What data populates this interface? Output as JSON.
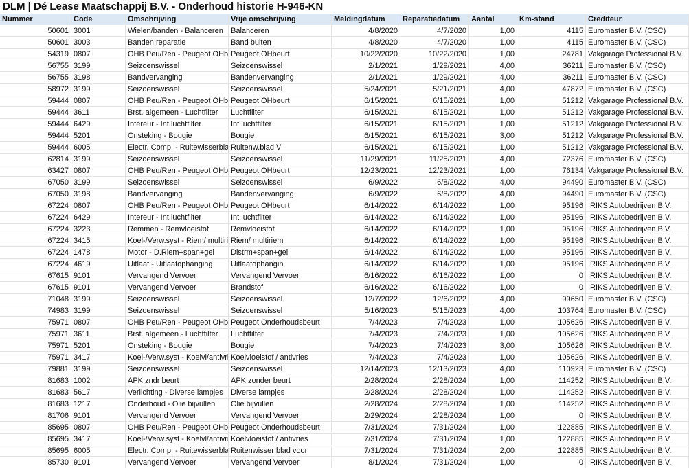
{
  "title": "DLM | Dé Lease Maatschappij B.V. - Onderhoud historie H-946-KN",
  "table": {
    "columns": [
      "Nummer",
      "Code",
      "Omschrijving",
      "Vrije omschrijving",
      "Meldingdatum",
      "Reparatiedatum",
      "Aantal",
      "Km-stand",
      "Crediteur"
    ],
    "rows": [
      [
        "50601",
        "3001",
        "Wielen/banden - Balanceren",
        "Balanceren",
        "4/8/2020",
        "4/7/2020",
        "1,00",
        "4115",
        "Euromaster B.V. (CSC)"
      ],
      [
        "50601",
        "3003",
        "Banden reparatie",
        "Band buiten",
        "4/8/2020",
        "4/7/2020",
        "1,00",
        "4115",
        "Euromaster B.V. (CSC)"
      ],
      [
        "54319",
        "0807",
        "OHB Peu/Ren - Peugeot OHbe",
        "Peugeot OHbeurt",
        "10/22/2020",
        "10/22/2020",
        "1,00",
        "24781",
        "Vakgarage Professional B.V."
      ],
      [
        "56755",
        "3199",
        "Seizoenswissel",
        "Seizoenswissel",
        "2/1/2021",
        "1/29/2021",
        "4,00",
        "36211",
        "Euromaster B.V. (CSC)"
      ],
      [
        "56755",
        "3198",
        "Bandvervanging",
        "Bandenvervanging",
        "2/1/2021",
        "1/29/2021",
        "4,00",
        "36211",
        "Euromaster B.V. (CSC)"
      ],
      [
        "58972",
        "3199",
        "Seizoenswissel",
        "Seizoenswissel",
        "5/24/2021",
        "5/21/2021",
        "4,00",
        "47872",
        "Euromaster B.V. (CSC)"
      ],
      [
        "59444",
        "0807",
        "OHB Peu/Ren - Peugeot OHbe",
        "Peugeot OHbeurt",
        "6/15/2021",
        "6/15/2021",
        "1,00",
        "51212",
        "Vakgarage Professional B.V."
      ],
      [
        "59444",
        "3611",
        "Brst. algemeen - Luchtfilter",
        "Luchtfilter",
        "6/15/2021",
        "6/15/2021",
        "1,00",
        "51212",
        "Vakgarage Professional B.V."
      ],
      [
        "59444",
        "6429",
        "Intereur - Int.luchtfilter",
        "Int luchtfilter",
        "6/15/2021",
        "6/15/2021",
        "1,00",
        "51212",
        "Vakgarage Professional B.V."
      ],
      [
        "59444",
        "5201",
        "Onsteking - Bougie",
        "Bougie",
        "6/15/2021",
        "6/15/2021",
        "3,00",
        "51212",
        "Vakgarage Professional B.V."
      ],
      [
        "59444",
        "6005",
        "Electr. Comp. - Ruitewisserbla",
        "Ruitenw.blad V",
        "6/15/2021",
        "6/15/2021",
        "1,00",
        "51212",
        "Vakgarage Professional B.V."
      ],
      [
        "62814",
        "3199",
        "Seizoenswissel",
        "Seizoenswissel",
        "11/29/2021",
        "11/25/2021",
        "4,00",
        "72376",
        "Euromaster B.V. (CSC)"
      ],
      [
        "63427",
        "0807",
        "OHB Peu/Ren - Peugeot OHbe",
        "Peugeot OHbeurt",
        "12/23/2021",
        "12/23/2021",
        "1,00",
        "76134",
        "Vakgarage Professional B.V."
      ],
      [
        "67050",
        "3199",
        "Seizoenswissel",
        "Seizoenswissel",
        "6/9/2022",
        "6/8/2022",
        "4,00",
        "94490",
        "Euromaster B.V. (CSC)"
      ],
      [
        "67050",
        "3198",
        "Bandvervanging",
        "Bandenvervanging",
        "6/9/2022",
        "6/8/2022",
        "4,00",
        "94490",
        "Euromaster B.V. (CSC)"
      ],
      [
        "67224",
        "0807",
        "OHB Peu/Ren - Peugeot OHbe",
        "Peugeot OHbeurt",
        "6/14/2022",
        "6/14/2022",
        "1,00",
        "95196",
        "IRIKS Autobedrijven B.V."
      ],
      [
        "67224",
        "6429",
        "Intereur - Int.luchtfilter",
        "Int luchtfilter",
        "6/14/2022",
        "6/14/2022",
        "1,00",
        "95196",
        "IRIKS Autobedrijven B.V."
      ],
      [
        "67224",
        "3223",
        "Remmen - Remvloeistof",
        "Remvloeistof",
        "6/14/2022",
        "6/14/2022",
        "1,00",
        "95196",
        "IRIKS Autobedrijven B.V."
      ],
      [
        "67224",
        "3415",
        "Koel-/Verw.syst - Riem/ multiri",
        "Riem/ multiriem",
        "6/14/2022",
        "6/14/2022",
        "1,00",
        "95196",
        "IRIKS Autobedrijven B.V."
      ],
      [
        "67224",
        "1478",
        "Motor - D.Riem+span+gel",
        "Distrm+span+gel",
        "6/14/2022",
        "6/14/2022",
        "1,00",
        "95196",
        "IRIKS Autobedrijven B.V."
      ],
      [
        "67224",
        "4619",
        "Uitlaat - Uitlaatophanging",
        "Uitlaatophangin",
        "6/14/2022",
        "6/14/2022",
        "1,00",
        "95196",
        "IRIKS Autobedrijven B.V."
      ],
      [
        "67615",
        "9101",
        "Vervangend Vervoer",
        "Vervangend Vervoer",
        "6/16/2022",
        "6/16/2022",
        "1,00",
        "0",
        "IRIKS Autobedrijven B.V."
      ],
      [
        "67615",
        "9101",
        "Vervangend Vervoer",
        "Brandstof",
        "6/16/2022",
        "6/16/2022",
        "1,00",
        "0",
        "IRIKS Autobedrijven B.V."
      ],
      [
        "71048",
        "3199",
        "Seizoenswissel",
        "Seizoenswissel",
        "12/7/2022",
        "12/6/2022",
        "4,00",
        "99650",
        "Euromaster B.V. (CSC)"
      ],
      [
        "74983",
        "3199",
        "Seizoenswissel",
        "Seizoenswissel",
        "5/16/2023",
        "5/15/2023",
        "4,00",
        "103764",
        "Euromaster B.V. (CSC)"
      ],
      [
        "75971",
        "0807",
        "OHB Peu/Ren - Peugeot OHbe",
        "Peugeot Onderhoudsbeurt",
        "7/4/2023",
        "7/4/2023",
        "1,00",
        "105626",
        "IRIKS Autobedrijven B.V."
      ],
      [
        "75971",
        "3611",
        "Brst. algemeen - Luchtfilter",
        "Luchtfilter",
        "7/4/2023",
        "7/4/2023",
        "1,00",
        "105626",
        "IRIKS Autobedrijven B.V."
      ],
      [
        "75971",
        "5201",
        "Onsteking - Bougie",
        "Bougie",
        "7/4/2023",
        "7/4/2023",
        "3,00",
        "105626",
        "IRIKS Autobedrijven B.V."
      ],
      [
        "75971",
        "3417",
        "Koel-/Verw.syst - Koelvl/antivri",
        "Koelvloeistof / antivries",
        "7/4/2023",
        "7/4/2023",
        "1,00",
        "105626",
        "IRIKS Autobedrijven B.V."
      ],
      [
        "79881",
        "3199",
        "Seizoenswissel",
        "Seizoenswissel",
        "12/14/2023",
        "12/13/2023",
        "4,00",
        "110923",
        "Euromaster B.V. (CSC)"
      ],
      [
        "81683",
        "1002",
        "APK zndr beurt",
        "APK zonder beurt",
        "2/28/2024",
        "2/28/2024",
        "1,00",
        "114252",
        "IRIKS Autobedrijven B.V."
      ],
      [
        "81683",
        "5617",
        "Verlichting - Diverse lampjes",
        "Diverse lampjes",
        "2/28/2024",
        "2/28/2024",
        "1,00",
        "114252",
        "IRIKS Autobedrijven B.V."
      ],
      [
        "81683",
        "1217",
        "Onderhoud - Olie bijvullen",
        "Olie bijvullen",
        "2/28/2024",
        "2/28/2024",
        "1,00",
        "114252",
        "IRIKS Autobedrijven B.V."
      ],
      [
        "81706",
        "9101",
        "Vervangend Vervoer",
        "Vervangend Vervoer",
        "2/29/2024",
        "2/28/2024",
        "1,00",
        "0",
        "IRIKS Autobedrijven B.V."
      ],
      [
        "85695",
        "0807",
        "OHB Peu/Ren - Peugeot OHbe",
        "Peugeot Onderhoudsbeurt",
        "7/31/2024",
        "7/31/2024",
        "1,00",
        "122885",
        "IRIKS Autobedrijven B.V."
      ],
      [
        "85695",
        "3417",
        "Koel-/Verw.syst - Koelvl/antivri",
        "Koelvloeistof / antivries",
        "7/31/2024",
        "7/31/2024",
        "1,00",
        "122885",
        "IRIKS Autobedrijven B.V."
      ],
      [
        "85695",
        "6005",
        "Electr. Comp. - Ruitewisserbla",
        "Ruitenwisser blad voor",
        "7/31/2024",
        "7/31/2024",
        "2,00",
        "122885",
        "IRIKS Autobedrijven B.V."
      ],
      [
        "85730",
        "9101",
        "Vervangend Vervoer",
        "Vervangend Vervoer",
        "8/1/2024",
        "7/31/2024",
        "1,00",
        "0",
        "IRIKS Autobedrijven B.V."
      ]
    ]
  }
}
